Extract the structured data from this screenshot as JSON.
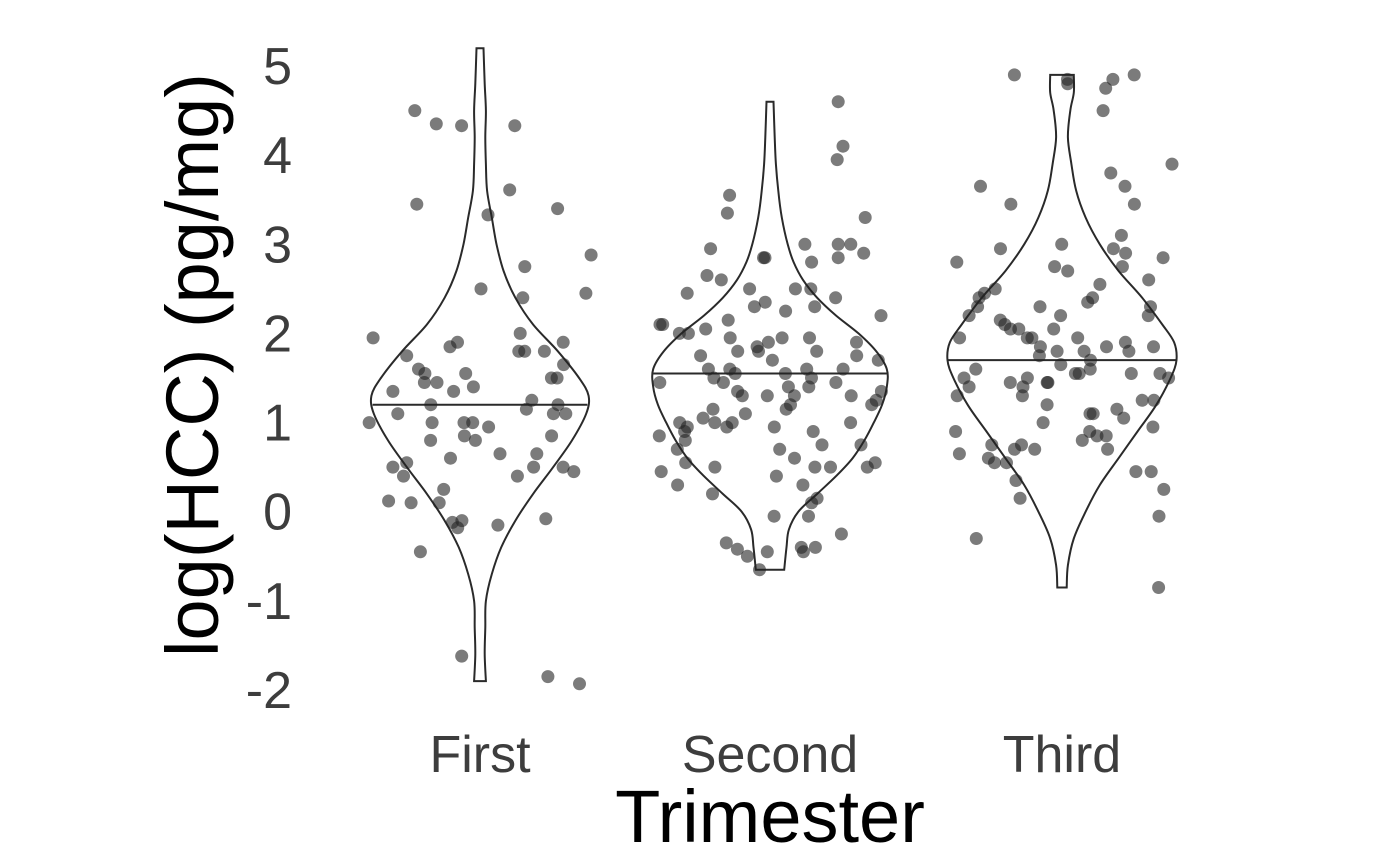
{
  "chart_data": {
    "type": "violin",
    "xlabel": "Trimester",
    "ylabel": "log(HCC) (pg/mg)",
    "ylim": [
      -2,
      5
    ],
    "yticks": [
      "-2",
      "-1",
      "0",
      "1",
      "2",
      "3",
      "4",
      "5"
    ],
    "grid": false,
    "categories": [
      "First",
      "Second",
      "Third"
    ],
    "groups": [
      {
        "name": "First",
        "median": 1.2,
        "range": [
          -1.9,
          5.2
        ],
        "density": [
          [
            -1.9,
            0.05
          ],
          [
            -1.6,
            0.04
          ],
          [
            -1.3,
            0.045
          ],
          [
            -1.0,
            0.05
          ],
          [
            -0.7,
            0.1
          ],
          [
            -0.4,
            0.18
          ],
          [
            -0.1,
            0.3
          ],
          [
            0.2,
            0.45
          ],
          [
            0.5,
            0.62
          ],
          [
            0.8,
            0.78
          ],
          [
            1.1,
            0.9
          ],
          [
            1.3,
            0.92
          ],
          [
            1.5,
            0.84
          ],
          [
            1.8,
            0.66
          ],
          [
            2.1,
            0.45
          ],
          [
            2.4,
            0.3
          ],
          [
            2.7,
            0.2
          ],
          [
            3.0,
            0.14
          ],
          [
            3.3,
            0.1
          ],
          [
            3.6,
            0.06
          ],
          [
            3.9,
            0.05
          ],
          [
            4.2,
            0.045
          ],
          [
            4.5,
            0.05
          ],
          [
            4.8,
            0.04
          ],
          [
            5.2,
            0.03
          ]
        ],
        "points": [
          4.33,
          4.35,
          3.61,
          2.88,
          2.0,
          1.8,
          1.75,
          1.1,
          1.15,
          1.1,
          0.5,
          0.25,
          -0.08,
          0.1,
          -0.15,
          -0.45,
          4.5,
          1.8,
          1.9,
          1.5,
          1.35,
          1.4,
          1.25,
          1.85,
          0.8,
          0.6,
          0.45,
          0.5,
          -0.1,
          1.0,
          0.85,
          0.55,
          0.4,
          0.1,
          -0.12,
          2.5,
          2.45,
          1.0,
          0.65,
          1.6,
          1.55,
          1.65,
          1.5,
          1.45,
          3.33,
          3.4,
          2.75,
          0.5,
          0.65,
          0.12,
          2.4,
          1.9,
          1.8,
          1.55,
          1.35,
          -0.18,
          -1.62,
          -1.93,
          0.85,
          1.95,
          1.45,
          1.1,
          0.4,
          1.0,
          1.0,
          1.2,
          4.33,
          3.45,
          -1.85,
          0.8,
          0.95,
          1.2
        ]
      },
      {
        "name": "Second",
        "median": 1.55,
        "range": [
          -0.65,
          4.6
        ],
        "density": [
          [
            -0.65,
            0.12
          ],
          [
            -0.4,
            0.14
          ],
          [
            -0.2,
            0.16
          ],
          [
            0.0,
            0.24
          ],
          [
            0.2,
            0.4
          ],
          [
            0.4,
            0.56
          ],
          [
            0.6,
            0.7
          ],
          [
            0.8,
            0.8
          ],
          [
            1.0,
            0.88
          ],
          [
            1.2,
            0.95
          ],
          [
            1.4,
            0.99
          ],
          [
            1.6,
            0.99
          ],
          [
            1.8,
            0.9
          ],
          [
            2.0,
            0.75
          ],
          [
            2.2,
            0.56
          ],
          [
            2.4,
            0.4
          ],
          [
            2.6,
            0.28
          ],
          [
            2.8,
            0.2
          ],
          [
            3.0,
            0.15
          ],
          [
            3.3,
            0.1
          ],
          [
            3.6,
            0.07
          ],
          [
            3.9,
            0.05
          ],
          [
            4.2,
            0.04
          ],
          [
            4.6,
            0.03
          ]
        ],
        "points": [
          2.5,
          2.3,
          2.1,
          1.95,
          1.8,
          1.7,
          1.6,
          1.45,
          1.3,
          1.2,
          1.05,
          0.95,
          0.75,
          0.6,
          0.45,
          -0.4,
          -0.45,
          -0.5,
          3.0,
          2.8,
          2.6,
          2.4,
          2.2,
          1.9,
          1.75,
          1.55,
          1.4,
          1.3,
          1.15,
          0.9,
          0.7,
          0.5,
          0.3,
          0.2,
          -0.65,
          4.6,
          3.35,
          3.0,
          2.95,
          2.85,
          2.5,
          2.3,
          2.1,
          1.95,
          1.8,
          1.6,
          1.45,
          1.35,
          1.2,
          1.0,
          0.95,
          0.85,
          0.5,
          0.4,
          0.3,
          0.1,
          -0.05,
          -0.45,
          3.0,
          2.9,
          2.5,
          2.45,
          2.25,
          2.05,
          1.95,
          1.85,
          1.6,
          1.5,
          1.35,
          1.3,
          1.15,
          1.0,
          0.9,
          0.7,
          0.55,
          0.5,
          -0.05,
          4.1,
          3.95,
          3.55,
          2.85,
          2.35,
          2.0,
          1.75,
          1.55,
          1.45,
          1.3,
          1.1,
          1.0,
          0.95,
          0.8,
          0.55,
          0.5,
          0.15,
          -0.4,
          -0.42,
          2.65,
          2.85,
          3.3,
          2.15,
          2.0,
          1.9,
          1.8,
          1.7,
          1.6,
          1.5,
          1.4,
          1.25,
          1.0,
          0.75,
          -0.35,
          -0.25
        ]
      },
      {
        "name": "Third",
        "median": 1.7,
        "range": [
          -0.85,
          4.9
        ],
        "density": [
          [
            -0.85,
            0.04
          ],
          [
            -0.6,
            0.05
          ],
          [
            -0.3,
            0.1
          ],
          [
            0.0,
            0.2
          ],
          [
            0.3,
            0.32
          ],
          [
            0.6,
            0.48
          ],
          [
            0.9,
            0.64
          ],
          [
            1.2,
            0.8
          ],
          [
            1.5,
            0.92
          ],
          [
            1.7,
            0.97
          ],
          [
            1.9,
            0.95
          ],
          [
            2.1,
            0.85
          ],
          [
            2.4,
            0.68
          ],
          [
            2.7,
            0.48
          ],
          [
            3.0,
            0.32
          ],
          [
            3.3,
            0.2
          ],
          [
            3.6,
            0.12
          ],
          [
            3.9,
            0.08
          ],
          [
            4.2,
            0.05
          ],
          [
            4.5,
            0.07
          ],
          [
            4.7,
            0.1
          ],
          [
            4.9,
            0.1
          ]
        ],
        "points": [
          4.9,
          4.85,
          4.85,
          4.8,
          4.75,
          4.5,
          3.45,
          3.65,
          2.75,
          2.8,
          2.4,
          2.2,
          2.05,
          1.95,
          1.85,
          1.7,
          1.55,
          1.5,
          1.45,
          1.2,
          0.8,
          0.15,
          -0.05,
          -0.85,
          2.35,
          2.3,
          2.2,
          2.05,
          1.95,
          1.85,
          1.75,
          1.55,
          1.5,
          1.3,
          1.0,
          0.7,
          0.6,
          0.45,
          0.35,
          0.25,
          3.8,
          3.9,
          2.9,
          2.75,
          2.55,
          2.3,
          2.05,
          1.9,
          1.8,
          1.6,
          1.55,
          1.4,
          1.25,
          1.15,
          0.9,
          0.85,
          0.7,
          4.9,
          2.95,
          2.85,
          2.7,
          2.6,
          2.5,
          2.3,
          2.15,
          1.85,
          1.8,
          1.45,
          1.3,
          1.25,
          1.05,
          0.85,
          0.7,
          0.55,
          0.45,
          3.45,
          3.1,
          2.95,
          2.45,
          2.2,
          2.1,
          1.95,
          1.8,
          1.65,
          1.5,
          1.4,
          1.1,
          0.95,
          0.75,
          0.65,
          0.55,
          3.65,
          3.0,
          2.4,
          1.95,
          1.6,
          1.55,
          1.45,
          1.1,
          0.9,
          0.75,
          -0.3
        ]
      }
    ]
  }
}
